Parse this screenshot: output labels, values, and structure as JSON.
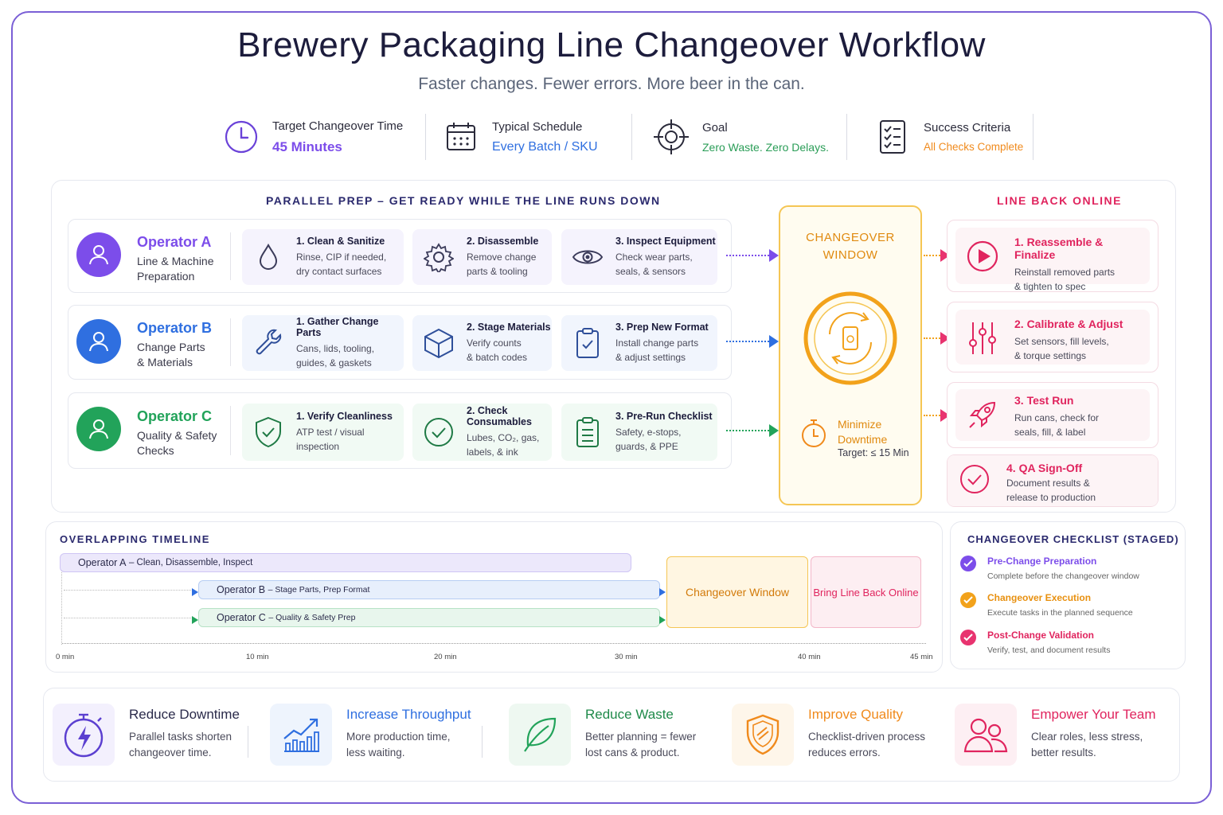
{
  "title": "Brewery Packaging Line Changeover Workflow",
  "subtitle": "Faster changes. Fewer errors. More beer in the can.",
  "kpis": [
    {
      "label": "Target Changeover Time",
      "value": "45 Minutes",
      "icon": "clock-icon",
      "color": "#7c4dea"
    },
    {
      "label": "Typical Schedule",
      "value": "Every Batch / SKU",
      "icon": "calendar-icon",
      "color": "#3b6fe0"
    },
    {
      "label": "Goal",
      "value": "Zero Waste. Zero Delays.",
      "icon": "target-icon",
      "color": "#2a9d57"
    },
    {
      "label": "Success Criteria",
      "value": "All Checks Complete",
      "icon": "checklist-icon",
      "color": "#f08a1c"
    }
  ],
  "parallel_prep": {
    "heading": "PARALLEL PREP – GET READY WHILE THE LINE RUNS DOWN",
    "operators": [
      {
        "name": "Operator A",
        "desc1": "Line & Machine",
        "desc2": "Preparation",
        "color": "#7c4dea",
        "tasks": [
          {
            "title": "1. Clean & Sanitize",
            "d1": "Rinse, CIP if needed,",
            "d2": "dry contact surfaces",
            "icon": "water-drop-icon"
          },
          {
            "title": "2. Disassemble",
            "d1": "Remove change",
            "d2": "parts & tooling",
            "icon": "gear-icon"
          },
          {
            "title": "3. Inspect Equipment",
            "d1": "Check wear parts,",
            "d2": "seals, & sensors",
            "icon": "eye-icon"
          }
        ]
      },
      {
        "name": "Operator B",
        "desc1": "Change Parts",
        "desc2": "& Materials",
        "color": "#2f6fe0",
        "tasks": [
          {
            "title": "1. Gather Change Parts",
            "d1": "Cans, lids, tooling,",
            "d2": "guides, & gaskets",
            "icon": "wrench-icon"
          },
          {
            "title": "2. Stage Materials",
            "d1": "Verify counts",
            "d2": "& batch codes",
            "icon": "box-icon"
          },
          {
            "title": "3. Prep New Format",
            "d1": "Install change parts",
            "d2": "& adjust settings",
            "icon": "clipboard-check-icon"
          }
        ]
      },
      {
        "name": "Operator C",
        "desc1": "Quality & Safety",
        "desc2": "Checks",
        "color": "#22a35a",
        "tasks": [
          {
            "title": "1. Verify Cleanliness",
            "d1": "ATP test / visual",
            "d2": "inspection",
            "icon": "shield-check-icon"
          },
          {
            "title": "2. Check Consumables",
            "d1": "Lubes, CO₂, gas,",
            "d2": "labels, & ink",
            "icon": "check-circle-icon"
          },
          {
            "title": "3. Pre-Run Checklist",
            "d1": "Safety, e-stops,",
            "d2": "guards, & PPE",
            "icon": "clipboard-list-icon"
          }
        ]
      }
    ]
  },
  "changeover_window": {
    "title1": "CHANGEOVER",
    "title2": "WINDOW",
    "minimize1": "Minimize",
    "minimize2": "Downtime",
    "target": "Target: ≤ 15 Min",
    "color": "#f2a21b"
  },
  "line_back_online": {
    "heading": "LINE BACK ONLINE",
    "steps": [
      {
        "title": "1. Reassemble & Finalize",
        "d1": "Reinstall removed parts",
        "d2": "& tighten to spec",
        "icon": "play-icon"
      },
      {
        "title": "2. Calibrate & Adjust",
        "d1": "Set sensors, fill levels,",
        "d2": "& torque settings",
        "icon": "sliders-icon"
      },
      {
        "title": "3. Test Run",
        "d1": "Run cans, check for",
        "d2": "seals, fill, & label",
        "icon": "rocket-icon"
      },
      {
        "title": "4. QA Sign-Off",
        "d1": "Document results &",
        "d2": "release to production",
        "icon": "check-circle-icon"
      }
    ],
    "color": "#e0245e"
  },
  "timeline": {
    "heading": "OVERLAPPING TIMELINE",
    "bars": [
      {
        "name": "Operator A",
        "detail": "– Clean, Disassemble, Inspect"
      },
      {
        "name": "Operator B",
        "detail": "– Stage Parts, Prep Format"
      },
      {
        "name": "Operator C",
        "detail": "– Quality & Safety Prep"
      }
    ],
    "window_label": "Changeover Window",
    "online_label": "Bring Line Back Online",
    "ticks": [
      "0 min",
      "10 min",
      "20 min",
      "30 min",
      "40 min",
      "45 min"
    ]
  },
  "checklist": {
    "heading": "CHANGEOVER CHECKLIST (STAGED)",
    "items": [
      {
        "title": "Pre-Change Preparation",
        "sub": "Complete before the changeover window",
        "color": "#7c4dea"
      },
      {
        "title": "Changeover Execution",
        "sub": "Execute tasks in the planned sequence",
        "color": "#f2a21b"
      },
      {
        "title": "Post-Change Validation",
        "sub": "Verify, test, and document results",
        "color": "#e8336f"
      }
    ]
  },
  "benefits": [
    {
      "title": "Reduce Downtime",
      "d1": "Parallel tasks shorten",
      "d2": "changeover time.",
      "icon": "stopwatch-bolt-icon",
      "color": "#5b3fd0"
    },
    {
      "title": "Increase Throughput",
      "d1": "More production time,",
      "d2": "less waiting.",
      "icon": "growth-chart-icon",
      "color": "#2f6fe0"
    },
    {
      "title": "Reduce Waste",
      "d1": "Better planning = fewer",
      "d2": "lost cans & product.",
      "icon": "leaf-icon",
      "color": "#22a35a"
    },
    {
      "title": "Improve Quality",
      "d1": "Checklist-driven process",
      "d2": "reduces errors.",
      "icon": "shield-icon",
      "color": "#f08a1c"
    },
    {
      "title": "Empower Your Team",
      "d1": "Clear roles, less stress,",
      "d2": "better results.",
      "icon": "team-icon",
      "color": "#e0245e"
    }
  ]
}
